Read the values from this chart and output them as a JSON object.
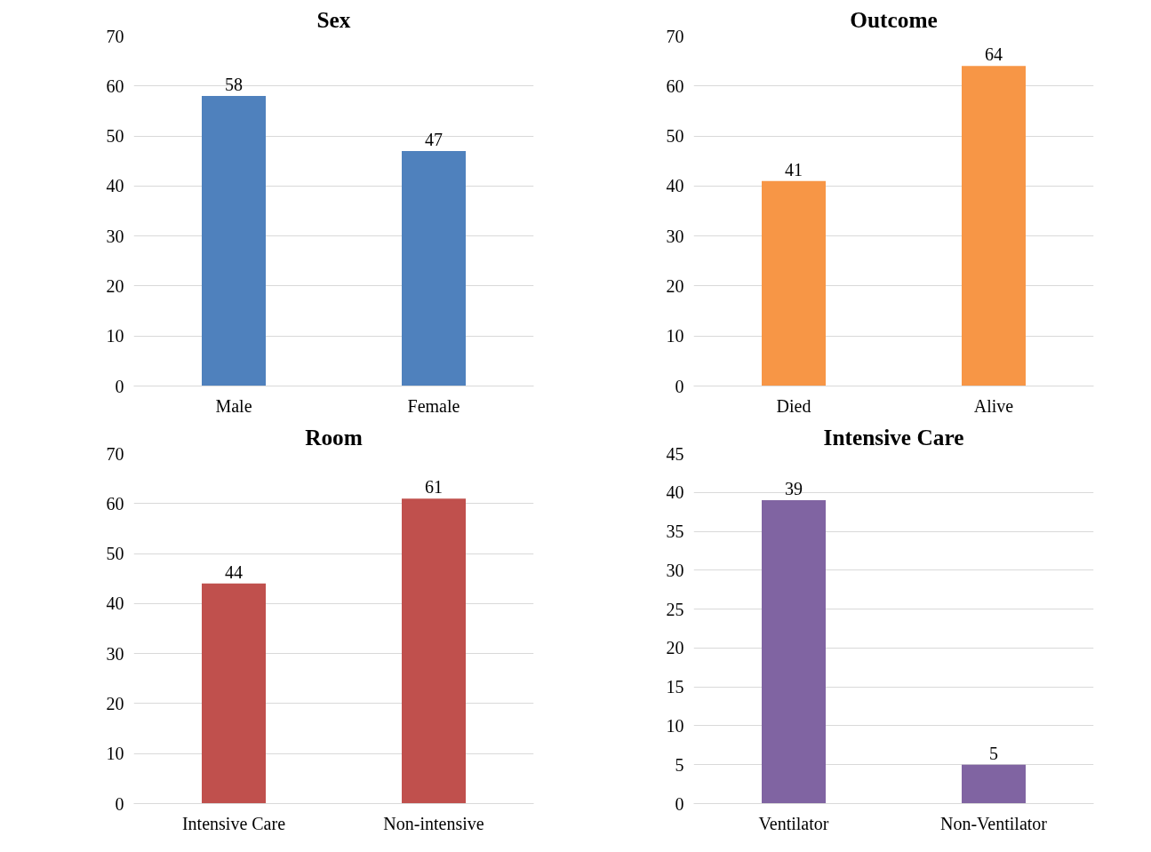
{
  "chart_data": [
    {
      "type": "bar",
      "title": "Sex",
      "categories": [
        "Male",
        "Female"
      ],
      "values": [
        58,
        47
      ],
      "color": "#4f81bd",
      "ylim": [
        0,
        70
      ],
      "yticks": [
        0,
        10,
        20,
        30,
        40,
        50,
        60,
        70
      ],
      "grid": "y",
      "data_labels": true,
      "legend": false
    },
    {
      "type": "bar",
      "title": "Outcome",
      "categories": [
        "Died",
        "Alive"
      ],
      "values": [
        41,
        64
      ],
      "color": "#f79646",
      "ylim": [
        0,
        70
      ],
      "yticks": [
        0,
        10,
        20,
        30,
        40,
        50,
        60,
        70
      ],
      "grid": "y",
      "data_labels": true,
      "legend": false
    },
    {
      "type": "bar",
      "title": "Room",
      "categories": [
        "Intensive Care",
        "Non-intensive"
      ],
      "values": [
        44,
        61
      ],
      "color": "#c0504d",
      "ylim": [
        0,
        70
      ],
      "yticks": [
        0,
        10,
        20,
        30,
        40,
        50,
        60,
        70
      ],
      "grid": "y",
      "data_labels": true,
      "legend": false
    },
    {
      "type": "bar",
      "title": "Intensive Care",
      "categories": [
        "Ventilator",
        "Non-Ventilator"
      ],
      "values": [
        39,
        5
      ],
      "color": "#8064a2",
      "ylim": [
        0,
        45
      ],
      "yticks": [
        0,
        5,
        10,
        15,
        20,
        25,
        30,
        35,
        40,
        45
      ],
      "grid": "y",
      "data_labels": true,
      "legend": false
    }
  ]
}
